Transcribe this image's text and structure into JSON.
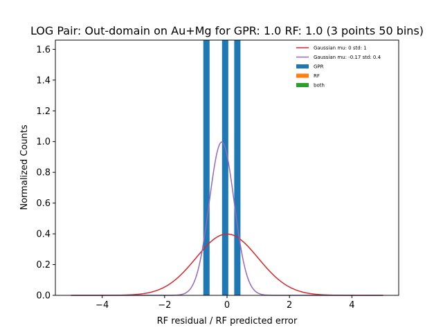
{
  "chart_data": {
    "type": "bar",
    "title": "LOG Pair: Out-domain on Au+Mg for GPR: 1.0 RF: 1.0 (3 points 50 bins)",
    "xlabel": "RF residual / RF predicted error",
    "ylabel": "Normalized Counts",
    "xlim": [
      -5.5,
      5.5
    ],
    "ylim": [
      0,
      1.66
    ],
    "xticks": [
      -4,
      -2,
      0,
      2,
      4
    ],
    "xtick_labels": [
      "−4",
      "−2",
      "0",
      "2",
      "4"
    ],
    "yticks": [
      0.0,
      0.2,
      0.4,
      0.6,
      0.8,
      1.0,
      1.2,
      1.4,
      1.6
    ],
    "ytick_labels": [
      "0.0",
      "0.2",
      "0.4",
      "0.6",
      "0.8",
      "1.0",
      "1.2",
      "1.4",
      "1.6"
    ],
    "grid": false,
    "legend_position": "top-right",
    "histograms": [
      {
        "name": "GPR",
        "color": "#1f77b4",
        "bins": [
          {
            "x0": -0.76,
            "x1": -0.56,
            "height": 1.66
          },
          {
            "x0": -0.16,
            "x1": 0.04,
            "height": 1.66
          },
          {
            "x0": 0.23,
            "x1": 0.43,
            "height": 1.66
          }
        ]
      },
      {
        "name": "RF",
        "color": "#ff7f0e",
        "bins": []
      },
      {
        "name": "both",
        "color": "#2ca02c",
        "bins": []
      }
    ],
    "curves": [
      {
        "name": "Gaussian mu: 0 std: 1",
        "color": "#d62728",
        "mu": 0,
        "std": 1,
        "x_range": [
          -5,
          5
        ]
      },
      {
        "name": "Gaussian mu: -0.17 std: 0.4",
        "color": "#9467bd",
        "mu": -0.17,
        "std": 0.4,
        "x_range": [
          -5,
          5
        ]
      }
    ]
  }
}
